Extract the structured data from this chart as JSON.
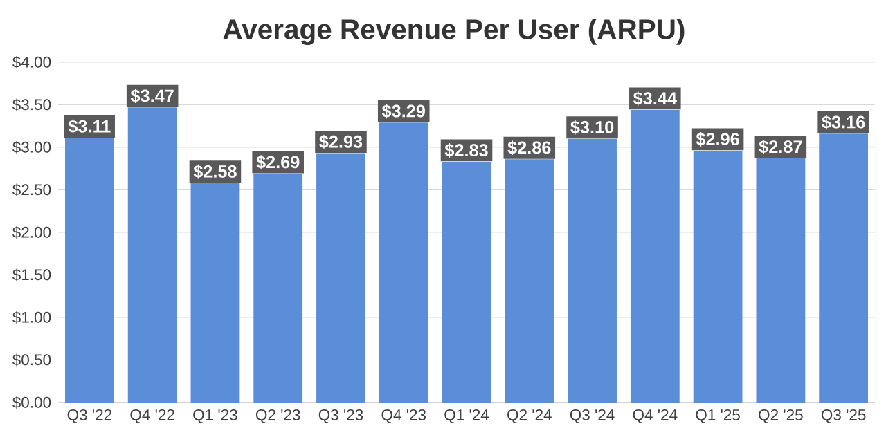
{
  "chart_data": {
    "type": "bar",
    "title": "Average Revenue Per User (ARPU)",
    "categories": [
      "Q3 '22",
      "Q4 '22",
      "Q1 '23",
      "Q2 '23",
      "Q3 '23",
      "Q4 '23",
      "Q1 '24",
      "Q2 '24",
      "Q3 '24",
      "Q4 '24",
      "Q1 '25",
      "Q2 '25",
      "Q3 '25"
    ],
    "values": [
      3.11,
      3.47,
      2.58,
      2.69,
      2.93,
      3.29,
      2.83,
      2.86,
      3.1,
      3.44,
      2.96,
      2.87,
      3.16
    ],
    "value_labels": [
      "$3.11",
      "$3.47",
      "$2.58",
      "$2.69",
      "$2.93",
      "$3.29",
      "$2.83",
      "$2.86",
      "$3.10",
      "$3.44",
      "$2.96",
      "$2.87",
      "$3.16"
    ],
    "color": "#5b8ed8",
    "ylim": [
      0,
      4
    ],
    "yticks": [
      {
        "value": 0,
        "label": "$0.00"
      },
      {
        "value": 0.5,
        "label": "$0.50"
      },
      {
        "value": 1,
        "label": "$1.00"
      },
      {
        "value": 1.5,
        "label": "$1.50"
      },
      {
        "value": 2,
        "label": "$2.00"
      },
      {
        "value": 2.5,
        "label": "$2.50"
      },
      {
        "value": 3,
        "label": "$3.00"
      },
      {
        "value": 3.5,
        "label": "$3.50"
      },
      {
        "value": 4,
        "label": "$4.00"
      }
    ],
    "grid": "y"
  }
}
